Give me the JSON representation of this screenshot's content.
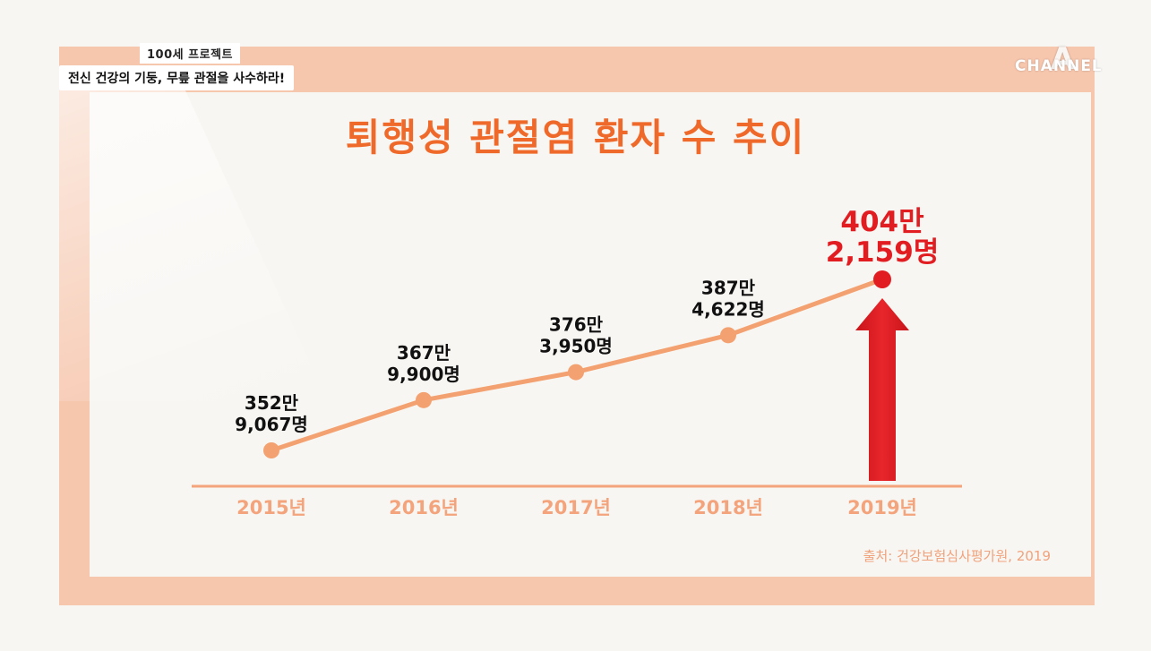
{
  "overlay": {
    "program": "100세 프로젝트",
    "subtitle": "전신 건강의 기둥, 무릎 관절을 사수하라!",
    "channel_logo": "CHANNEL"
  },
  "source_note": "출처: 건강보험심사평가원, 2019",
  "colors": {
    "title": "#ef6a2a",
    "line": "#f3a170",
    "point": "#f3a170",
    "highlight": "#e11d22",
    "axis": "#f3a47c",
    "frame": "#f6c6ad"
  },
  "chart_data": {
    "type": "line",
    "title": "퇴행성 관절염 환자 수 추이",
    "categories": [
      "2015년",
      "2016년",
      "2017년",
      "2018년",
      "2019년"
    ],
    "values": [
      3529067,
      3679900,
      3763950,
      3874622,
      4042159
    ],
    "labels": [
      [
        "352만",
        "9,067명"
      ],
      [
        "367만",
        "9,900명"
      ],
      [
        "376만",
        "3,950명"
      ],
      [
        "387만",
        "4,622명"
      ],
      [
        "404만",
        "2,159명"
      ]
    ],
    "highlight_index": 4,
    "highlight_marker": "up-arrow",
    "ylim": [
      3300000,
      4100000
    ],
    "grid": false,
    "legend": "none",
    "xlabel": "",
    "ylabel": ""
  }
}
